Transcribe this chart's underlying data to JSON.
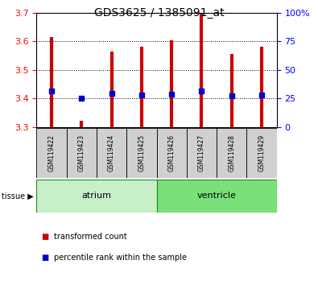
{
  "title": "GDS3625 / 1385091_at",
  "samples": [
    "GSM119422",
    "GSM119423",
    "GSM119424",
    "GSM119425",
    "GSM119426",
    "GSM119427",
    "GSM119428",
    "GSM119429"
  ],
  "red_bottom": [
    3.3,
    3.3,
    3.3,
    3.3,
    3.3,
    3.3,
    3.3,
    3.3
  ],
  "red_top": [
    3.615,
    3.32,
    3.565,
    3.58,
    3.605,
    3.7,
    3.555,
    3.58
  ],
  "blue_values": [
    3.425,
    3.4,
    3.418,
    3.413,
    3.415,
    3.425,
    3.408,
    3.413
  ],
  "ylim": [
    3.3,
    3.7
  ],
  "yticks_left": [
    3.3,
    3.4,
    3.5,
    3.6,
    3.7
  ],
  "yticks_right": [
    0,
    25,
    50,
    75,
    100
  ],
  "groups": [
    {
      "label": "atrium",
      "start": 0,
      "end": 4,
      "color": "#c8f0c8"
    },
    {
      "label": "ventricle",
      "start": 4,
      "end": 8,
      "color": "#7ae07a"
    }
  ],
  "red_color": "#cc0000",
  "blue_color": "#0000cc",
  "blue_square_size": 18,
  "xlabel_area_color": "#d0d0d0",
  "tissue_label": "tissue",
  "legend_red": "transformed count",
  "legend_blue": "percentile rank within the sample"
}
